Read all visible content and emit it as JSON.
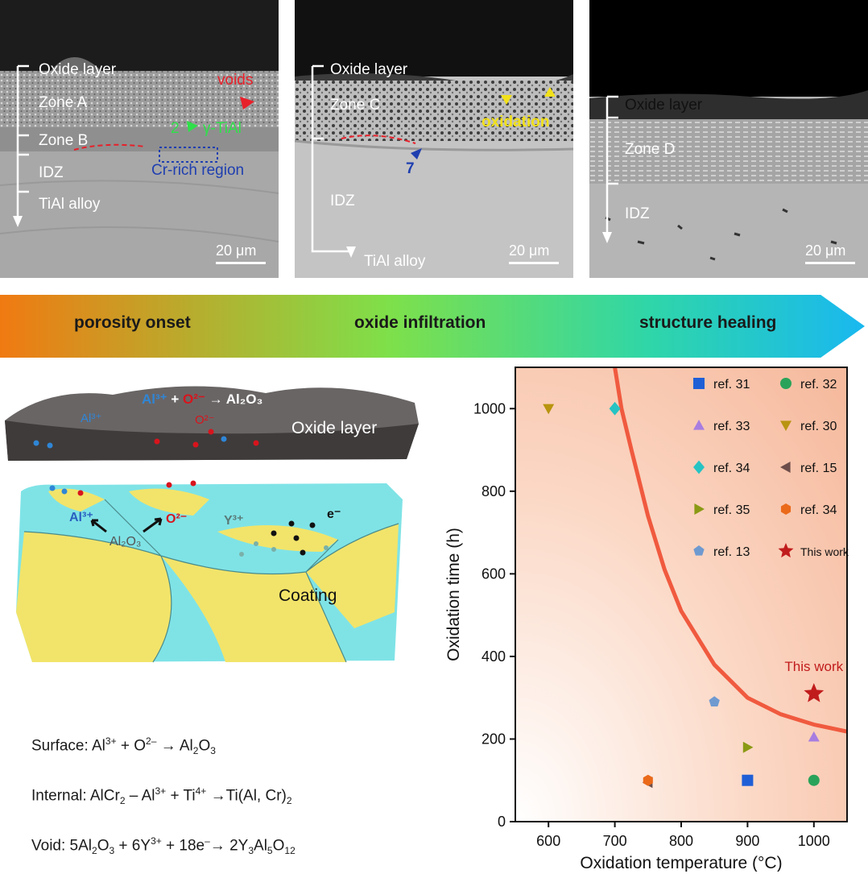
{
  "panels": [
    {
      "labels": {
        "oxide": "Oxide layer",
        "zone_a": "Zone A",
        "zone_b": "Zone B",
        "idz": "IDZ",
        "tial": "TiAl alloy",
        "voids": "voids",
        "phase_num": "2",
        "phase": "γ-TiAl",
        "cr_region": "Cr-rich region"
      },
      "scale": "20 μm"
    },
    {
      "labels": {
        "oxide": "Oxide layer",
        "zone_c": "Zone C",
        "oxidation": "oxidation",
        "num": "7",
        "idz": "IDZ",
        "tial": "TiAl alloy"
      },
      "scale": "20 μm"
    },
    {
      "labels": {
        "oxide": "Oxide layer",
        "zone_d": "Zone D",
        "idz": "IDZ"
      },
      "scale": "20 μm"
    }
  ],
  "stages": [
    "porosity onset",
    "oxide infiltration",
    "structure healing"
  ],
  "schematic": {
    "top": {
      "reaction": "Al³⁺ + O²⁻ → Al₂O₃",
      "al_ion": "Al³⁺",
      "o_ion": "O²⁻",
      "label": "Oxide layer"
    },
    "bottom": {
      "al_ion": "Al³⁺",
      "o_ion": "O²⁻",
      "al2o3": "Al₂O₃",
      "y_ion": "Y³⁺",
      "electron": "e⁻",
      "label": "Coating"
    }
  },
  "equations": {
    "surface": {
      "prefix": "Surface: Al",
      "s1": "3+",
      "m1": " + O",
      "s2": "2–",
      "m2": " → Al",
      "b1": "2",
      "m3": "O",
      "b2": "3"
    },
    "internal": {
      "prefix": "Internal: AlCr",
      "b1": "2",
      "m1": " – Al",
      "s1": "3+",
      "m2": " + Ti",
      "s2": "4+",
      "m3": " →Ti(Al, Cr)",
      "b2": "2"
    },
    "void": {
      "prefix": "Void: 5Al",
      "b1": "2",
      "m1": "O",
      "b2": "3",
      "m2": " + 6Y",
      "s1": "3+",
      "m3": " + 18e",
      "s2": "–",
      "m4": "→ 2Y",
      "b3": "3",
      "m5": "Al",
      "b4": "5",
      "m6": "O",
      "b5": "12"
    }
  },
  "colors": {
    "al": "#2f86d6",
    "o": "#d8141c",
    "yellow": "#f2e46a",
    "cyan": "#7fe3e6",
    "curve": "#f05a3f",
    "star": "#c11c1c"
  },
  "chart_data": {
    "type": "scatter",
    "xlabel": "Oxidation temperature (°C)",
    "ylabel": "Oxidation time (h)",
    "xlim": [
      550,
      1050
    ],
    "ylim": [
      0,
      1100
    ],
    "xticks": [
      600,
      700,
      800,
      900,
      1000
    ],
    "yticks": [
      0,
      200,
      400,
      600,
      800,
      1000
    ],
    "annotation": "This work",
    "legend_placement": "top-right",
    "series": [
      {
        "name": "ref. 31",
        "marker": "square",
        "color": "#1f5fd6",
        "x": [
          900
        ],
        "y": [
          100
        ]
      },
      {
        "name": "ref. 32",
        "marker": "circle",
        "color": "#2aa35a",
        "x": [
          1000
        ],
        "y": [
          100
        ]
      },
      {
        "name": "ref. 33",
        "marker": "triangle-up",
        "color": "#a77de0",
        "x": [
          1000
        ],
        "y": [
          205
        ]
      },
      {
        "name": "ref. 30",
        "marker": "triangle-down",
        "color": "#b8940f",
        "x": [
          600
        ],
        "y": [
          1000
        ]
      },
      {
        "name": "ref. 34",
        "marker": "diamond",
        "color": "#27c3c3",
        "x": [
          700
        ],
        "y": [
          1000
        ]
      },
      {
        "name": "ref. 15",
        "marker": "triangle-left",
        "color": "#6e4e4a",
        "x": [
          750
        ],
        "y": [
          95
        ]
      },
      {
        "name": "ref. 35",
        "marker": "triangle-right",
        "color": "#8a9a14",
        "x": [
          900
        ],
        "y": [
          180
        ]
      },
      {
        "name": "ref. 34",
        "marker": "hexagon",
        "color": "#ea6a1a",
        "x": [
          750
        ],
        "y": [
          100
        ]
      },
      {
        "name": "ref. 13",
        "marker": "pentagon",
        "color": "#6f9ad0",
        "x": [
          850
        ],
        "y": [
          290
        ]
      },
      {
        "name": "This work",
        "marker": "star",
        "color": "#c11c1c",
        "x": [
          1000
        ],
        "y": [
          310
        ]
      }
    ],
    "boundary_curve": {
      "x": [
        700,
        710,
        725,
        750,
        775,
        800,
        850,
        900,
        950,
        1000,
        1050
      ],
      "y": [
        1100,
        1000,
        900,
        740,
        610,
        510,
        380,
        300,
        260,
        235,
        218
      ]
    }
  }
}
